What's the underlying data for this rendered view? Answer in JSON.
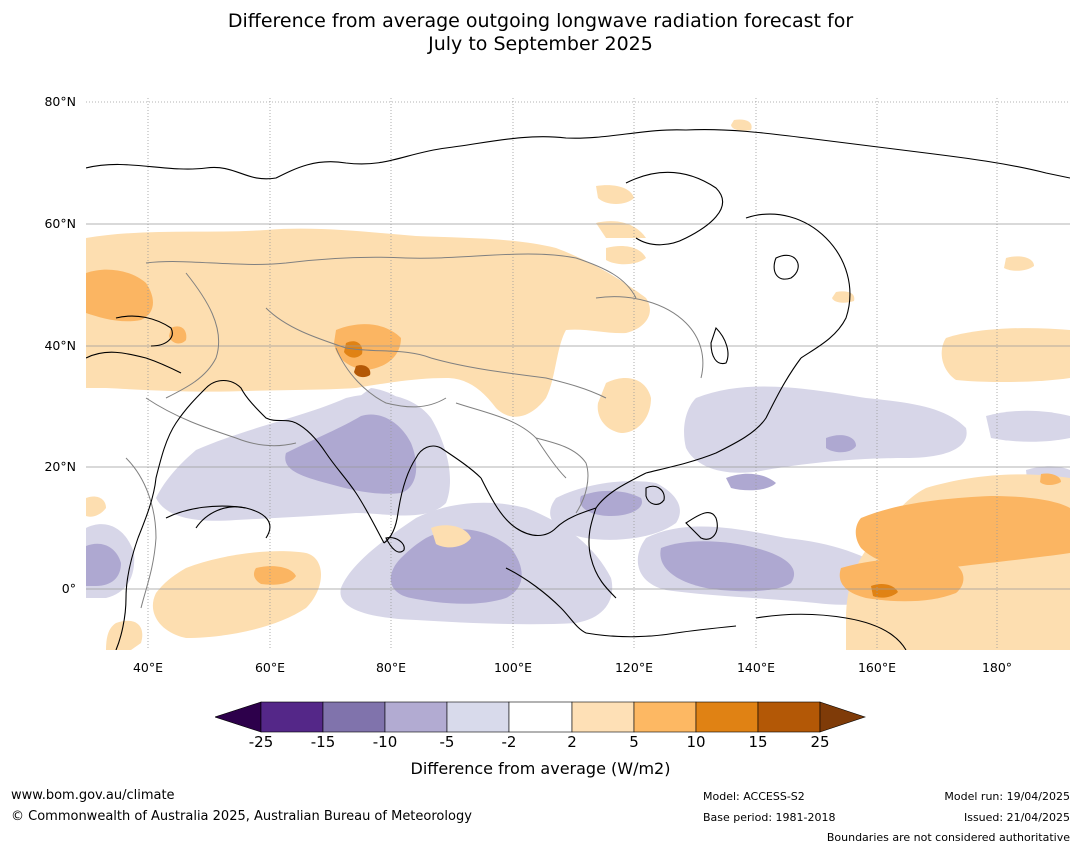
{
  "header": {
    "title_line1": "Difference from average outgoing longwave radiation forecast for",
    "title_line2": "July to September 2025"
  },
  "map": {
    "lat_labels": [
      "80°N",
      "60°N",
      "40°N",
      "20°N",
      "0°"
    ],
    "lon_labels": [
      "40°E",
      "60°E",
      "80°E",
      "100°E",
      "120°E",
      "140°E",
      "160°E",
      "180°"
    ],
    "colors": {
      "land_border": "#000000",
      "country_border": "#808080",
      "grid": "#9a9a9a",
      "neg_10_5": "#aea8d1",
      "neg_5_2": "#d7d6e8",
      "pos_2_5": "#fddeb0",
      "pos_5_10": "#fbb562",
      "pos_10_15": "#e08214",
      "pos_15_25": "#b35806"
    }
  },
  "colorbar": {
    "ticks": [
      "-25",
      "-15",
      "-10",
      "-5",
      "-2",
      "2",
      "5",
      "10",
      "15",
      "25"
    ],
    "colors": [
      "#2d004b",
      "#542788",
      "#8073ac",
      "#b2abd2",
      "#d8daeb",
      "#ffffff",
      "#fee0b6",
      "#fdb863",
      "#e08214",
      "#b35806",
      "#7f3b08"
    ],
    "label": "Difference from average (W/m2)"
  },
  "footer": {
    "url": "www.bom.gov.au/climate",
    "copyright": "© Commonwealth of Australia 2025, Australian Bureau of Meteorology",
    "model": "Model: ACCESS-S2",
    "base_period": "Base period: 1981-2018",
    "model_run": "Model run: 19/04/2025",
    "issued": "Issued: 21/04/2025",
    "disclaimer": "Boundaries are not considered authoritative"
  }
}
